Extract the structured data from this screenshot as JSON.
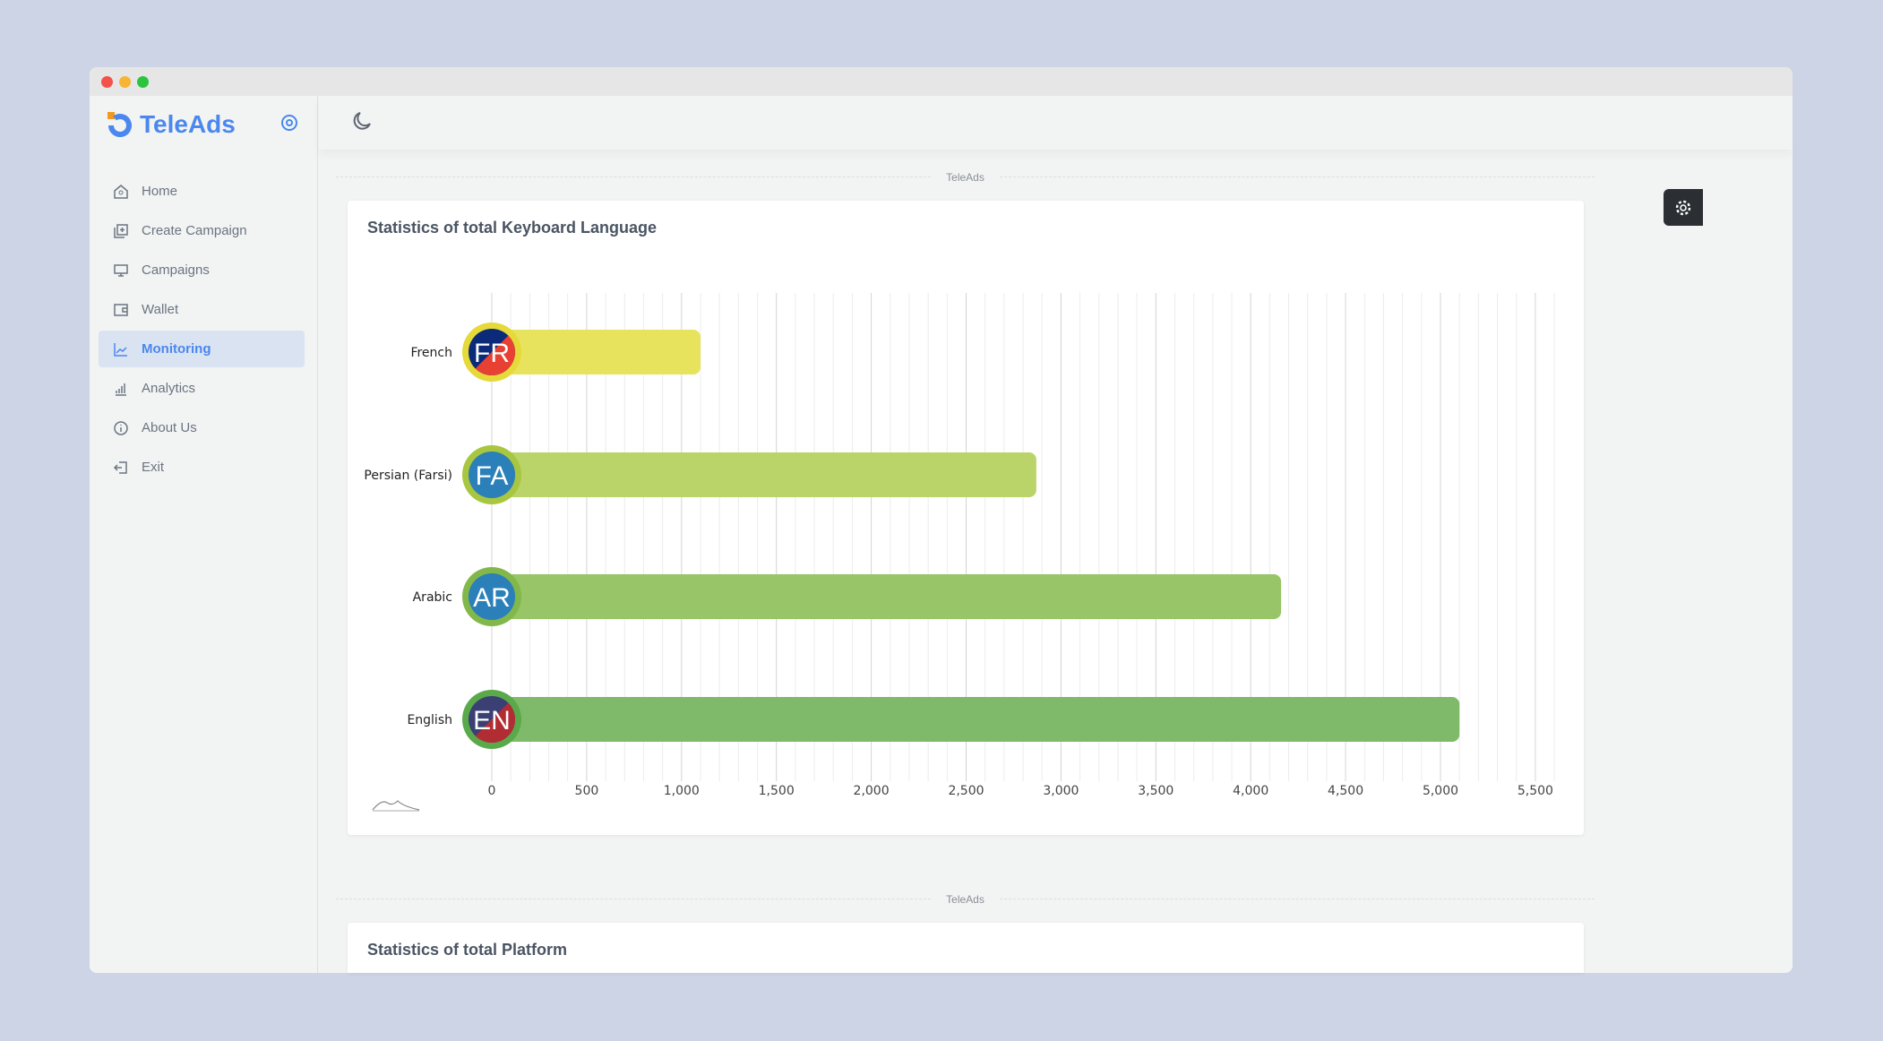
{
  "window": {
    "controls": [
      "close",
      "minimize",
      "maximize"
    ]
  },
  "brand": {
    "name": "TeleAds",
    "accent": "#4a87ee"
  },
  "sidebar": {
    "items": [
      {
        "label": "Home",
        "icon": "home-icon"
      },
      {
        "label": "Create Campaign",
        "icon": "add-box-icon"
      },
      {
        "label": "Campaigns",
        "icon": "monitor-icon"
      },
      {
        "label": "Wallet",
        "icon": "wallet-icon"
      },
      {
        "label": "Monitoring",
        "icon": "line-chart-icon",
        "active": true
      },
      {
        "label": "Analytics",
        "icon": "bar-chart-icon"
      },
      {
        "label": "About Us",
        "icon": "info-icon"
      },
      {
        "label": "Exit",
        "icon": "exit-icon"
      }
    ]
  },
  "dividers": {
    "first": "TeleAds",
    "second": "TeleAds"
  },
  "cards": {
    "keyboard": {
      "title": "Statistics of total Keyboard Language"
    },
    "platform": {
      "title": "Statistics of total Platform"
    }
  },
  "chart_data": {
    "type": "bar",
    "orientation": "horizontal",
    "title": "Statistics of total Keyboard Language",
    "categories": [
      "French",
      "Persian (Farsi)",
      "Arabic",
      "English"
    ],
    "badges": [
      "FR",
      "FA",
      "AR",
      "EN"
    ],
    "values": [
      1100,
      2870,
      4160,
      5100
    ],
    "colors": [
      "#e8e35c",
      "#bad46a",
      "#97c567",
      "#7fba6b"
    ],
    "ring_colors": [
      "#e6d93a",
      "#a8c63f",
      "#82b84a",
      "#5aa94a"
    ],
    "xlim": [
      0,
      5500
    ],
    "xticks": [
      "0",
      "500",
      "1,000",
      "1,500",
      "2,000",
      "2,500",
      "3,000",
      "3,500",
      "4,000",
      "4,500",
      "5,000",
      "5,500"
    ],
    "grid": true
  }
}
